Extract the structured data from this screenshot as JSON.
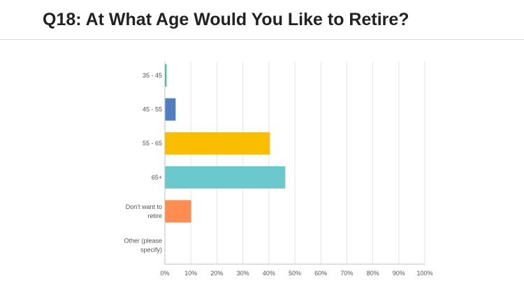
{
  "title": "Q18: At What Age Would You Like to Retire?",
  "colors": {
    "grid": "#e4e4e4",
    "axis": "#bdbdbd",
    "label": "#555555"
  },
  "chart_data": {
    "type": "bar",
    "orientation": "horizontal",
    "title": "Q18: At What Age Would You Like to Retire?",
    "xlabel": "",
    "ylabel": "",
    "xlim": [
      0,
      100
    ],
    "x_ticks": [
      "0%",
      "10%",
      "20%",
      "30%",
      "40%",
      "50%",
      "60%",
      "70%",
      "80%",
      "90%",
      "100%"
    ],
    "grid": true,
    "categories": [
      {
        "lines": [
          "35 - 45"
        ],
        "value": 0.5,
        "color": "#2bbf8c"
      },
      {
        "lines": [
          "45 - 55"
        ],
        "value": 4,
        "color": "#4f7fbf"
      },
      {
        "lines": [
          "55 - 65"
        ],
        "value": 40.3,
        "color": "#f9be00"
      },
      {
        "lines": [
          "65+"
        ],
        "value": 46.2,
        "color": "#6bc8cd"
      },
      {
        "lines": [
          "Don't want to",
          "retire"
        ],
        "value": 10,
        "color": "#ff8c50"
      },
      {
        "lines": [
          "Other (please",
          "specify)"
        ],
        "value": 0,
        "color": "#9b59b6"
      }
    ]
  }
}
